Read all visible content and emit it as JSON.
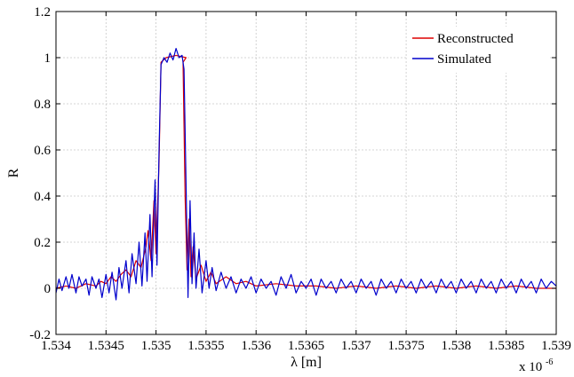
{
  "chart_data": {
    "type": "line",
    "xlabel": "λ [m]",
    "ylabel": "R",
    "x_exponent_label": "x 10",
    "x_exponent_power": "-6",
    "xlim": [
      1.534,
      1.539
    ],
    "ylim": [
      -0.2,
      1.2
    ],
    "x_ticks": [
      1.534,
      1.5345,
      1.535,
      1.5355,
      1.536,
      1.5365,
      1.537,
      1.5375,
      1.538,
      1.5385,
      1.539
    ],
    "x_tick_labels": [
      "1.534",
      "1.5345",
      "1.535",
      "1.5355",
      "1.536",
      "1.5365",
      "1.537",
      "1.5375",
      "1.538",
      "1.5385",
      "1.539"
    ],
    "y_ticks": [
      -0.2,
      0,
      0.2,
      0.4,
      0.6,
      0.8,
      1,
      1.2
    ],
    "y_tick_labels": [
      "-0.2",
      "0",
      "0.2",
      "0.4",
      "0.6",
      "0.8",
      "1",
      "1.2"
    ],
    "grid": true,
    "legend_position": "top-right",
    "series": [
      {
        "name": "Reconstructed",
        "color": "#dd0000",
        "points": [
          [
            1.534,
            0.0
          ],
          [
            1.5341,
            0.01
          ],
          [
            1.5342,
            0.0
          ],
          [
            1.5343,
            0.02
          ],
          [
            1.5344,
            0.01
          ],
          [
            1.53445,
            0.03
          ],
          [
            1.5345,
            0.02
          ],
          [
            1.53455,
            0.05
          ],
          [
            1.5346,
            0.03
          ],
          [
            1.53465,
            0.06
          ],
          [
            1.5347,
            0.08
          ],
          [
            1.53475,
            0.05
          ],
          [
            1.5348,
            0.12
          ],
          [
            1.53485,
            0.09
          ],
          [
            1.5349,
            0.18
          ],
          [
            1.53492,
            0.25
          ],
          [
            1.53495,
            0.12
          ],
          [
            1.53498,
            0.38
          ],
          [
            1.535,
            0.15
          ],
          [
            1.53503,
            0.55
          ],
          [
            1.53505,
            0.98
          ],
          [
            1.5351,
            1.0
          ],
          [
            1.5352,
            1.01
          ],
          [
            1.5353,
            1.0
          ],
          [
            1.53527,
            0.98
          ],
          [
            1.53529,
            0.4
          ],
          [
            1.53531,
            0.08
          ],
          [
            1.53533,
            0.3
          ],
          [
            1.53535,
            0.05
          ],
          [
            1.53537,
            0.18
          ],
          [
            1.5354,
            0.04
          ],
          [
            1.53545,
            0.1
          ],
          [
            1.5355,
            0.03
          ],
          [
            1.53555,
            0.07
          ],
          [
            1.5356,
            0.02
          ],
          [
            1.5357,
            0.05
          ],
          [
            1.5358,
            0.02
          ],
          [
            1.5359,
            0.03
          ],
          [
            1.536,
            0.01
          ],
          [
            1.5362,
            0.02
          ],
          [
            1.5364,
            0.01
          ],
          [
            1.5366,
            0.01
          ],
          [
            1.5368,
            0.0
          ],
          [
            1.537,
            0.01
          ],
          [
            1.5372,
            0.0
          ],
          [
            1.5374,
            0.01
          ],
          [
            1.5376,
            0.0
          ],
          [
            1.5378,
            0.01
          ],
          [
            1.538,
            0.0
          ],
          [
            1.5382,
            0.01
          ],
          [
            1.5384,
            0.0
          ],
          [
            1.5386,
            0.01
          ],
          [
            1.5388,
            0.0
          ],
          [
            1.539,
            0.0
          ]
        ]
      },
      {
        "name": "Simulated",
        "color": "#0000cc",
        "points": [
          [
            1.534,
            -0.02
          ],
          [
            1.53403,
            0.04
          ],
          [
            1.53406,
            -0.01
          ],
          [
            1.5341,
            0.05
          ],
          [
            1.53413,
            0.0
          ],
          [
            1.53416,
            0.06
          ],
          [
            1.5342,
            -0.02
          ],
          [
            1.53423,
            0.05
          ],
          [
            1.53426,
            0.01
          ],
          [
            1.5343,
            0.04
          ],
          [
            1.53433,
            -0.03
          ],
          [
            1.53436,
            0.05
          ],
          [
            1.5344,
            0.0
          ],
          [
            1.53443,
            0.04
          ],
          [
            1.53446,
            -0.04
          ],
          [
            1.5345,
            0.06
          ],
          [
            1.53453,
            -0.02
          ],
          [
            1.53456,
            0.07
          ],
          [
            1.5346,
            -0.05
          ],
          [
            1.53463,
            0.09
          ],
          [
            1.53466,
            0.0
          ],
          [
            1.5347,
            0.12
          ],
          [
            1.53473,
            -0.02
          ],
          [
            1.53476,
            0.15
          ],
          [
            1.5348,
            0.02
          ],
          [
            1.53483,
            0.2
          ],
          [
            1.53486,
            0.01
          ],
          [
            1.53489,
            0.24
          ],
          [
            1.53491,
            0.03
          ],
          [
            1.53494,
            0.32
          ],
          [
            1.53496,
            0.05
          ],
          [
            1.53499,
            0.47
          ],
          [
            1.53501,
            0.1
          ],
          [
            1.53503,
            0.6
          ],
          [
            1.53505,
            0.97
          ],
          [
            1.53508,
            1.0
          ],
          [
            1.53511,
            0.98
          ],
          [
            1.53514,
            1.02
          ],
          [
            1.53517,
            0.99
          ],
          [
            1.5352,
            1.04
          ],
          [
            1.53523,
            1.0
          ],
          [
            1.53526,
            1.01
          ],
          [
            1.53528,
            0.95
          ],
          [
            1.5353,
            0.45
          ],
          [
            1.53532,
            -0.04
          ],
          [
            1.53534,
            0.38
          ],
          [
            1.53536,
            0.02
          ],
          [
            1.53538,
            0.24
          ],
          [
            1.5354,
            0.0
          ],
          [
            1.53543,
            0.17
          ],
          [
            1.53546,
            -0.02
          ],
          [
            1.5355,
            0.12
          ],
          [
            1.53553,
            0.0
          ],
          [
            1.53556,
            0.09
          ],
          [
            1.5356,
            -0.01
          ],
          [
            1.53565,
            0.07
          ],
          [
            1.5357,
            0.0
          ],
          [
            1.53575,
            0.05
          ],
          [
            1.5358,
            -0.02
          ],
          [
            1.53585,
            0.04
          ],
          [
            1.5359,
            0.0
          ],
          [
            1.53595,
            0.05
          ],
          [
            1.536,
            -0.02
          ],
          [
            1.53605,
            0.04
          ],
          [
            1.5361,
            0.0
          ],
          [
            1.53615,
            0.03
          ],
          [
            1.5362,
            -0.03
          ],
          [
            1.53625,
            0.05
          ],
          [
            1.5363,
            0.0
          ],
          [
            1.53635,
            0.06
          ],
          [
            1.5364,
            -0.02
          ],
          [
            1.53645,
            0.03
          ],
          [
            1.5365,
            0.0
          ],
          [
            1.53655,
            0.04
          ],
          [
            1.5366,
            -0.03
          ],
          [
            1.53665,
            0.04
          ],
          [
            1.5367,
            0.0
          ],
          [
            1.53675,
            0.03
          ],
          [
            1.5368,
            -0.02
          ],
          [
            1.53685,
            0.04
          ],
          [
            1.5369,
            0.0
          ],
          [
            1.53695,
            0.03
          ],
          [
            1.537,
            -0.02
          ],
          [
            1.53705,
            0.04
          ],
          [
            1.5371,
            0.0
          ],
          [
            1.53715,
            0.03
          ],
          [
            1.5372,
            -0.03
          ],
          [
            1.53725,
            0.04
          ],
          [
            1.5373,
            0.0
          ],
          [
            1.53735,
            0.03
          ],
          [
            1.5374,
            -0.02
          ],
          [
            1.53745,
            0.04
          ],
          [
            1.5375,
            0.0
          ],
          [
            1.53755,
            0.03
          ],
          [
            1.5376,
            -0.02
          ],
          [
            1.53765,
            0.04
          ],
          [
            1.5377,
            0.0
          ],
          [
            1.53775,
            0.03
          ],
          [
            1.5378,
            -0.02
          ],
          [
            1.53785,
            0.04
          ],
          [
            1.5379,
            0.0
          ],
          [
            1.53795,
            0.03
          ],
          [
            1.538,
            -0.02
          ],
          [
            1.53805,
            0.04
          ],
          [
            1.5381,
            0.0
          ],
          [
            1.53815,
            0.03
          ],
          [
            1.5382,
            -0.02
          ],
          [
            1.53825,
            0.04
          ],
          [
            1.5383,
            0.0
          ],
          [
            1.53835,
            0.03
          ],
          [
            1.5384,
            -0.02
          ],
          [
            1.53845,
            0.04
          ],
          [
            1.5385,
            0.0
          ],
          [
            1.53855,
            0.03
          ],
          [
            1.5386,
            -0.02
          ],
          [
            1.53865,
            0.04
          ],
          [
            1.5387,
            0.0
          ],
          [
            1.53875,
            0.03
          ],
          [
            1.5388,
            -0.02
          ],
          [
            1.53885,
            0.04
          ],
          [
            1.5389,
            0.0
          ],
          [
            1.53895,
            0.03
          ],
          [
            1.539,
            0.01
          ]
        ]
      }
    ]
  }
}
